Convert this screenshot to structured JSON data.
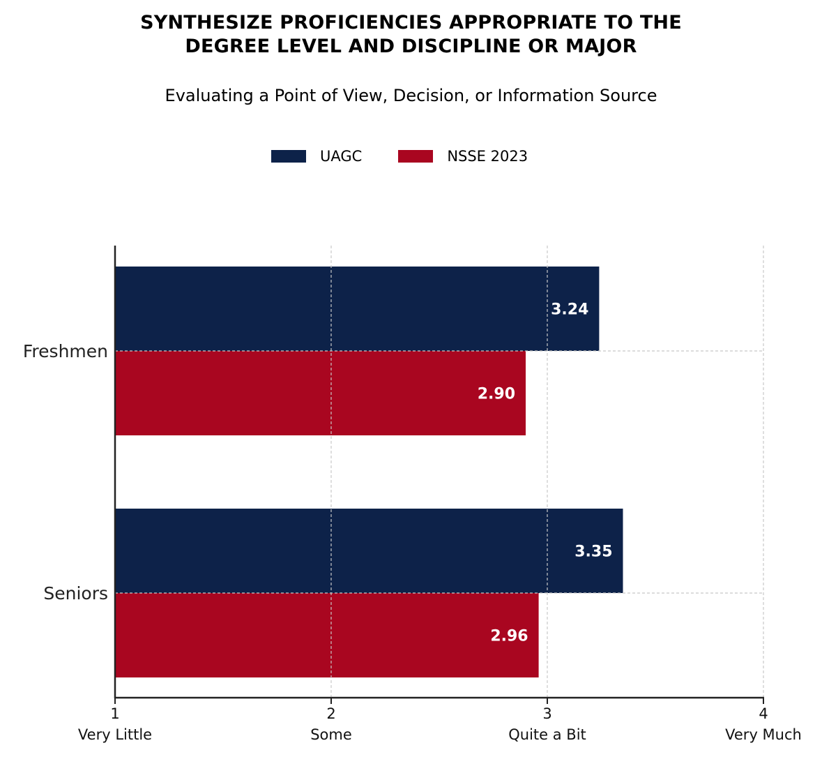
{
  "title_lines": [
    "SYNTHESIZE PROFICIENCIES APPROPRIATE TO THE",
    "DEGREE LEVEL AND DISCIPLINE OR MAJOR"
  ],
  "subtitle": "Evaluating a Point of View, Decision, or Information Source",
  "colors": {
    "UAGC": "#0d2249",
    "NSSE 2023": "#a90620",
    "label_text": "#ffffff",
    "grid": "#c8c8c8",
    "axis": "#222222"
  },
  "chart_data": {
    "type": "bar",
    "orientation": "horizontal",
    "categories": [
      "Freshmen",
      "Seniors"
    ],
    "series": [
      {
        "name": "UAGC",
        "values": [
          3.24,
          3.35
        ],
        "labels": [
          "3.24",
          "3.35"
        ]
      },
      {
        "name": "NSSE 2023",
        "values": [
          2.9,
          2.96
        ],
        "labels": [
          "2.90",
          "2.96"
        ]
      }
    ],
    "xlim": [
      1,
      4
    ],
    "x_ticks": [
      1,
      2,
      3,
      4
    ],
    "x_tick_labels": [
      "1",
      "2",
      "3",
      "4"
    ],
    "x_tick_sublabels": [
      "Very Little",
      "Some",
      "Quite a Bit",
      "Very Much"
    ],
    "grid": true,
    "legend_position": "top-center"
  }
}
